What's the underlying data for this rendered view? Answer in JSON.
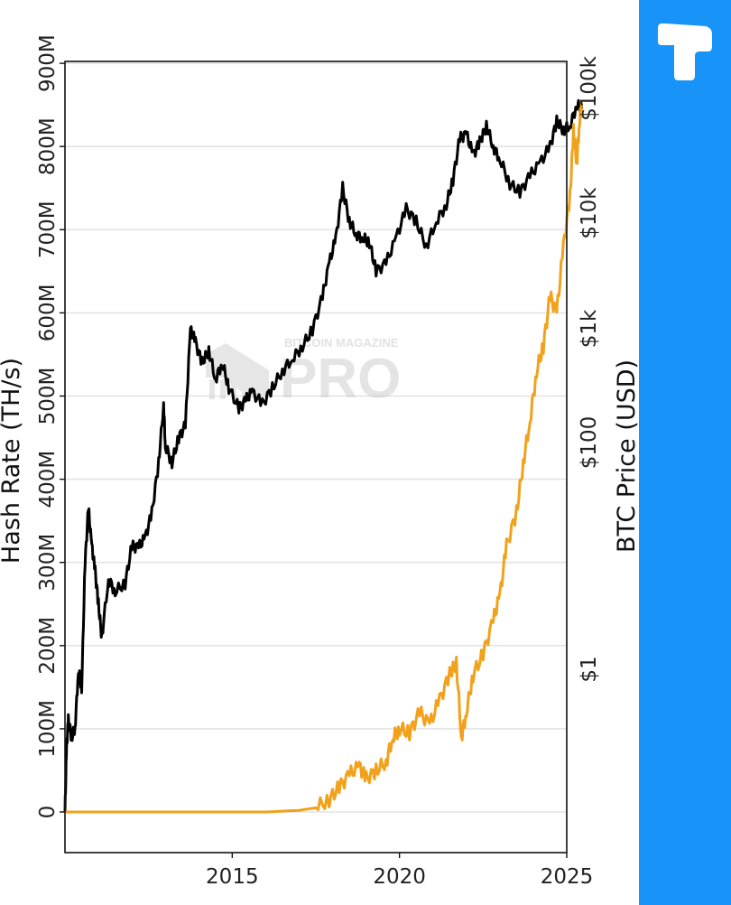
{
  "colors": {
    "hash_rate": "#000000",
    "btc_price": "#f2a11a",
    "sidebar": "#1893f7"
  },
  "watermark": {
    "line1": "BITCOIN MAGAZINE",
    "line2": "PRO"
  },
  "brand": {
    "icon": "t-logo-icon"
  },
  "chart_data": {
    "type": "line",
    "orientation": "rotated 90 degrees clockwise (x axis at bottom = years, value axes run vertically)",
    "x_ticks": [
      "2015",
      "2020",
      "2025"
    ],
    "x_range": [
      2010.0,
      2025.0
    ],
    "left_axis": {
      "title": "Hash Rate (TH/s)",
      "ticks": [
        "900M",
        "800M",
        "700M",
        "600M",
        "500M",
        "400M",
        "300M",
        "200M",
        "100M",
        "0"
      ],
      "range": [
        -50,
        920
      ]
    },
    "right_axis": {
      "title": "BTC Price (USD)",
      "ticks": [
        "$100k",
        "$10k",
        "$1k",
        "$100",
        "$1"
      ]
    },
    "series": [
      {
        "name": "Hash Rate",
        "color": "#000000",
        "points": [
          [
            2010.0,
            0
          ],
          [
            2010.05,
            80
          ],
          [
            2010.1,
            110
          ],
          [
            2010.2,
            90
          ],
          [
            2010.3,
            100
          ],
          [
            2010.4,
            170
          ],
          [
            2010.5,
            150
          ],
          [
            2010.6,
            300
          ],
          [
            2010.7,
            365
          ],
          [
            2010.8,
            320
          ],
          [
            2010.9,
            290
          ],
          [
            2011.0,
            250
          ],
          [
            2011.1,
            210
          ],
          [
            2011.3,
            280
          ],
          [
            2011.5,
            265
          ],
          [
            2011.8,
            275
          ],
          [
            2012.0,
            320
          ],
          [
            2012.2,
            318
          ],
          [
            2012.4,
            330
          ],
          [
            2012.6,
            360
          ],
          [
            2012.8,
            420
          ],
          [
            2012.95,
            490
          ],
          [
            2013.0,
            440
          ],
          [
            2013.2,
            420
          ],
          [
            2013.4,
            450
          ],
          [
            2013.6,
            465
          ],
          [
            2013.75,
            580
          ],
          [
            2013.9,
            565
          ],
          [
            2014.1,
            540
          ],
          [
            2014.3,
            555
          ],
          [
            2014.5,
            520
          ],
          [
            2014.7,
            540
          ],
          [
            2014.9,
            510
          ],
          [
            2015.2,
            485
          ],
          [
            2015.4,
            495
          ],
          [
            2015.6,
            505
          ],
          [
            2015.9,
            490
          ],
          [
            2016.2,
            510
          ],
          [
            2016.5,
            530
          ],
          [
            2016.8,
            545
          ],
          [
            2017.1,
            560
          ],
          [
            2017.4,
            580
          ],
          [
            2017.7,
            620
          ],
          [
            2017.9,
            660
          ],
          [
            2018.1,
            690
          ],
          [
            2018.3,
            750
          ],
          [
            2018.5,
            710
          ],
          [
            2018.7,
            695
          ],
          [
            2018.9,
            690
          ],
          [
            2019.1,
            685
          ],
          [
            2019.3,
            650
          ],
          [
            2019.6,
            660
          ],
          [
            2019.9,
            690
          ],
          [
            2020.2,
            725
          ],
          [
            2020.5,
            710
          ],
          [
            2020.8,
            680
          ],
          [
            2021.1,
            710
          ],
          [
            2021.4,
            730
          ],
          [
            2021.6,
            760
          ],
          [
            2021.8,
            810
          ],
          [
            2022.0,
            815
          ],
          [
            2022.2,
            790
          ],
          [
            2022.4,
            805
          ],
          [
            2022.6,
            825
          ],
          [
            2022.8,
            800
          ],
          [
            2023.0,
            785
          ],
          [
            2023.3,
            755
          ],
          [
            2023.6,
            745
          ],
          [
            2023.9,
            765
          ],
          [
            2024.2,
            780
          ],
          [
            2024.5,
            800
          ],
          [
            2024.7,
            830
          ],
          [
            2024.9,
            820
          ],
          [
            2025.1,
            825
          ],
          [
            2025.3,
            850
          ],
          [
            2025.45,
            845
          ]
        ]
      },
      {
        "name": "BTC Price",
        "color": "#f2a11a",
        "scale": "log (plotted position in hash-rate units)",
        "points": [
          [
            2010.0,
            0
          ],
          [
            2014.0,
            0
          ],
          [
            2016.0,
            0
          ],
          [
            2017.0,
            2
          ],
          [
            2017.5,
            5
          ],
          [
            2017.9,
            15
          ],
          [
            2018.2,
            30
          ],
          [
            2018.5,
            45
          ],
          [
            2018.8,
            55
          ],
          [
            2019.0,
            40
          ],
          [
            2019.3,
            50
          ],
          [
            2019.6,
            60
          ],
          [
            2019.8,
            90
          ],
          [
            2020.0,
            100
          ],
          [
            2020.3,
            95
          ],
          [
            2020.6,
            120
          ],
          [
            2020.9,
            105
          ],
          [
            2021.2,
            135
          ],
          [
            2021.5,
            165
          ],
          [
            2021.7,
            180
          ],
          [
            2021.85,
            90
          ],
          [
            2022.0,
            120
          ],
          [
            2022.2,
            165
          ],
          [
            2022.5,
            190
          ],
          [
            2022.8,
            230
          ],
          [
            2023.0,
            260
          ],
          [
            2023.2,
            320
          ],
          [
            2023.5,
            360
          ],
          [
            2023.7,
            420
          ],
          [
            2023.9,
            470
          ],
          [
            2024.1,
            530
          ],
          [
            2024.3,
            560
          ],
          [
            2024.5,
            620
          ],
          [
            2024.7,
            600
          ],
          [
            2024.9,
            680
          ],
          [
            2025.1,
            740
          ],
          [
            2025.2,
            820
          ],
          [
            2025.3,
            780
          ],
          [
            2025.38,
            830
          ],
          [
            2025.45,
            850
          ]
        ]
      }
    ]
  }
}
